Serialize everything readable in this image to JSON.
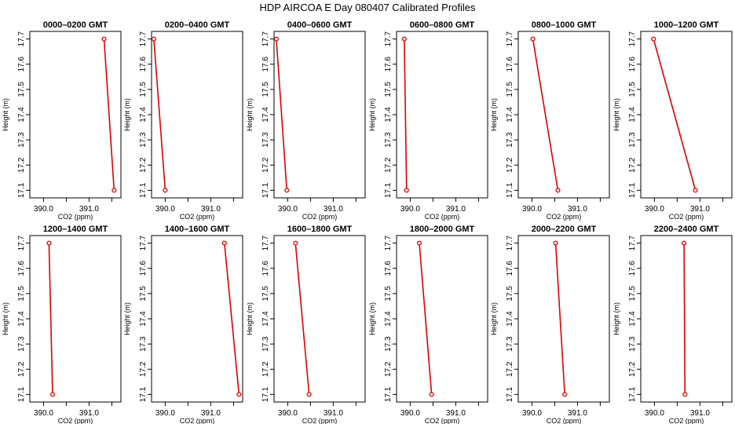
{
  "figure": {
    "title": "HDP  AIRCOA E  Day 080407  Calibrated Profiles"
  },
  "colors": {
    "series": "#dd0000",
    "axis": "#000000"
  },
  "chart_data": [
    {
      "type": "line",
      "title": "0000–0200 GMT",
      "xlabel": "CO2 (ppm)",
      "ylabel": "Height (m)",
      "xlim": [
        389.7,
        391.7
      ],
      "ylim": [
        17.07,
        17.73
      ],
      "xticks": [
        "390.0",
        "391.0"
      ],
      "yticks": [
        "17.1",
        "17.2",
        "17.3",
        "17.4",
        "17.5",
        "17.6",
        "17.7"
      ],
      "series": [
        {
          "x": [
            391.33,
            391.55
          ],
          "y": [
            17.7,
            17.1
          ]
        }
      ]
    },
    {
      "type": "line",
      "title": "0200–0400 GMT",
      "xlabel": "CO2 (ppm)",
      "ylabel": "Height (m)",
      "xlim": [
        389.7,
        391.7
      ],
      "ylim": [
        17.07,
        17.73
      ],
      "xticks": [
        "390.0",
        "391.0"
      ],
      "yticks": [
        "17.1",
        "17.2",
        "17.3",
        "17.4",
        "17.5",
        "17.6",
        "17.7"
      ],
      "series": [
        {
          "x": [
            389.75,
            390.0
          ],
          "y": [
            17.7,
            17.1
          ]
        }
      ]
    },
    {
      "type": "line",
      "title": "0400–0600 GMT",
      "xlabel": "CO2 (ppm)",
      "ylabel": "Height (m)",
      "xlim": [
        389.7,
        391.7
      ],
      "ylim": [
        17.07,
        17.73
      ],
      "xticks": [
        "390.0",
        "391.0"
      ],
      "yticks": [
        "17.1",
        "17.2",
        "17.3",
        "17.4",
        "17.5",
        "17.6",
        "17.7"
      ],
      "series": [
        {
          "x": [
            389.75,
            389.98
          ],
          "y": [
            17.7,
            17.1
          ]
        }
      ]
    },
    {
      "type": "line",
      "title": "0600–0800 GMT",
      "xlabel": "CO2 (ppm)",
      "ylabel": "Height (m)",
      "xlim": [
        389.7,
        391.7
      ],
      "ylim": [
        17.07,
        17.73
      ],
      "xticks": [
        "390.0",
        "391.0"
      ],
      "yticks": [
        "17.1",
        "17.2",
        "17.3",
        "17.4",
        "17.5",
        "17.6",
        "17.7"
      ],
      "series": [
        {
          "x": [
            389.87,
            389.92
          ],
          "y": [
            17.7,
            17.1
          ]
        }
      ]
    },
    {
      "type": "line",
      "title": "0800–1000 GMT",
      "xlabel": "CO2 (ppm)",
      "ylabel": "Height (m)",
      "xlim": [
        389.7,
        391.7
      ],
      "ylim": [
        17.07,
        17.73
      ],
      "xticks": [
        "390.0",
        "391.0"
      ],
      "yticks": [
        "17.1",
        "17.2",
        "17.3",
        "17.4",
        "17.5",
        "17.6",
        "17.7"
      ],
      "series": [
        {
          "x": [
            390.02,
            390.57
          ],
          "y": [
            17.7,
            17.1
          ]
        }
      ]
    },
    {
      "type": "line",
      "title": "1000–1200 GMT",
      "xlabel": "CO2 (ppm)",
      "ylabel": "Height (m)",
      "xlim": [
        389.7,
        391.7
      ],
      "ylim": [
        17.07,
        17.73
      ],
      "xticks": [
        "390.0",
        "391.0"
      ],
      "yticks": [
        "17.1",
        "17.2",
        "17.3",
        "17.4",
        "17.5",
        "17.6",
        "17.7"
      ],
      "series": [
        {
          "x": [
            389.98,
            390.9
          ],
          "y": [
            17.7,
            17.1
          ]
        }
      ]
    },
    {
      "type": "line",
      "title": "1200–1400 GMT",
      "xlabel": "CO2 (ppm)",
      "ylabel": "Height (m)",
      "xlim": [
        389.7,
        391.7
      ],
      "ylim": [
        17.07,
        17.73
      ],
      "xticks": [
        "390.0",
        "391.0"
      ],
      "yticks": [
        "17.1",
        "17.2",
        "17.3",
        "17.4",
        "17.5",
        "17.6",
        "17.7"
      ],
      "series": [
        {
          "x": [
            390.12,
            390.2
          ],
          "y": [
            17.7,
            17.1
          ]
        }
      ]
    },
    {
      "type": "line",
      "title": "1400–1600 GMT",
      "xlabel": "CO2 (ppm)",
      "ylabel": "Height (m)",
      "xlim": [
        389.7,
        391.7
      ],
      "ylim": [
        17.07,
        17.73
      ],
      "xticks": [
        "390.0",
        "391.0"
      ],
      "yticks": [
        "17.1",
        "17.2",
        "17.3",
        "17.4",
        "17.5",
        "17.6",
        "17.7"
      ],
      "series": [
        {
          "x": [
            391.3,
            391.62
          ],
          "y": [
            17.7,
            17.1
          ]
        }
      ]
    },
    {
      "type": "line",
      "title": "1600–1800 GMT",
      "xlabel": "CO2 (ppm)",
      "ylabel": "Height (m)",
      "xlim": [
        389.7,
        391.7
      ],
      "ylim": [
        17.07,
        17.73
      ],
      "xticks": [
        "390.0",
        "391.0"
      ],
      "yticks": [
        "17.1",
        "17.2",
        "17.3",
        "17.4",
        "17.5",
        "17.6",
        "17.7"
      ],
      "series": [
        {
          "x": [
            390.17,
            390.47
          ],
          "y": [
            17.7,
            17.1
          ]
        }
      ]
    },
    {
      "type": "line",
      "title": "1800–2000 GMT",
      "xlabel": "CO2 (ppm)",
      "ylabel": "Height (m)",
      "xlim": [
        389.7,
        391.7
      ],
      "ylim": [
        17.07,
        17.73
      ],
      "xticks": [
        "390.0",
        "391.0"
      ],
      "yticks": [
        "17.1",
        "17.2",
        "17.3",
        "17.4",
        "17.5",
        "17.6",
        "17.7"
      ],
      "series": [
        {
          "x": [
            390.2,
            390.47
          ],
          "y": [
            17.7,
            17.1
          ]
        }
      ]
    },
    {
      "type": "line",
      "title": "2000–2200 GMT",
      "xlabel": "CO2 (ppm)",
      "ylabel": "Height (m)",
      "xlim": [
        389.7,
        391.7
      ],
      "ylim": [
        17.07,
        17.73
      ],
      "xticks": [
        "390.0",
        "391.0"
      ],
      "yticks": [
        "17.1",
        "17.2",
        "17.3",
        "17.4",
        "17.5",
        "17.6",
        "17.7"
      ],
      "series": [
        {
          "x": [
            390.52,
            390.72
          ],
          "y": [
            17.7,
            17.1
          ]
        }
      ]
    },
    {
      "type": "line",
      "title": "2200–2400 GMT",
      "xlabel": "CO2 (ppm)",
      "ylabel": "Height (m)",
      "xlim": [
        389.7,
        391.7
      ],
      "ylim": [
        17.07,
        17.73
      ],
      "xticks": [
        "390.0",
        "391.0"
      ],
      "yticks": [
        "17.1",
        "17.2",
        "17.3",
        "17.4",
        "17.5",
        "17.6",
        "17.7"
      ],
      "series": [
        {
          "x": [
            390.65,
            390.67
          ],
          "y": [
            17.7,
            17.1
          ]
        }
      ]
    }
  ]
}
